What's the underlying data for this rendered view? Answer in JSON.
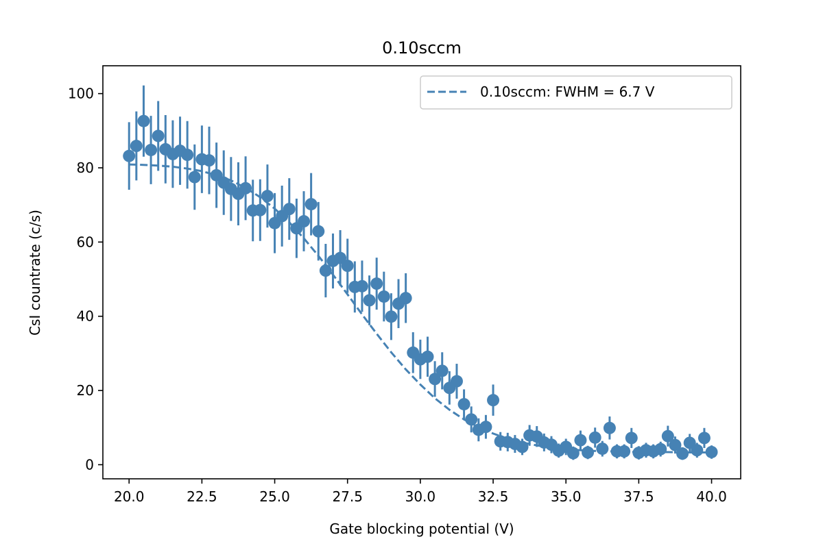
{
  "chart_data": {
    "type": "scatter",
    "title": "0.10sccm",
    "xlabel": "Gate blocking potential (V)",
    "ylabel": "CsI countrate (c/s)",
    "xlim": [
      19.1,
      41.0
    ],
    "ylim": [
      -3.8,
      107.5
    ],
    "xticks": [
      20.0,
      22.5,
      25.0,
      27.5,
      30.0,
      32.5,
      35.0,
      37.5,
      40.0
    ],
    "xtick_labels": [
      "20.0",
      "22.5",
      "25.0",
      "27.5",
      "30.0",
      "32.5",
      "35.0",
      "37.5",
      "40.0"
    ],
    "yticks": [
      0,
      20,
      40,
      60,
      80,
      100
    ],
    "ytick_labels": [
      "0",
      "20",
      "40",
      "60",
      "80",
      "100"
    ],
    "grid": false,
    "legend": {
      "placement": "top-right",
      "entries": [
        "0.10sccm: FWHM = 6.7 V"
      ]
    },
    "color": "#4682b4",
    "series": [
      {
        "name": "data",
        "style": "errorbar-points",
        "x": [
          20.0,
          20.25,
          20.5,
          20.75,
          21.0,
          21.25,
          21.5,
          21.75,
          22.0,
          22.25,
          22.5,
          22.75,
          23.0,
          23.25,
          23.5,
          23.75,
          24.0,
          24.25,
          24.5,
          24.75,
          25.0,
          25.25,
          25.5,
          25.75,
          26.0,
          26.25,
          26.5,
          26.75,
          27.0,
          27.25,
          27.5,
          27.75,
          28.0,
          28.25,
          28.5,
          28.75,
          29.0,
          29.25,
          29.5,
          29.75,
          30.0,
          30.25,
          30.5,
          30.75,
          31.0,
          31.25,
          31.5,
          31.75,
          32.0,
          32.25,
          32.5,
          32.75,
          33.0,
          33.25,
          33.5,
          33.75,
          34.0,
          34.25,
          34.5,
          34.75,
          35.0,
          35.25,
          35.5,
          35.75,
          36.0,
          36.25,
          36.5,
          36.75,
          37.0,
          37.25,
          37.5,
          37.75,
          38.0,
          38.25,
          38.5,
          38.75,
          39.0,
          39.25,
          39.5,
          39.75,
          40.0
        ],
        "y": [
          83.2,
          85.9,
          92.6,
          84.8,
          88.6,
          85.0,
          83.7,
          84.6,
          83.5,
          77.5,
          82.3,
          82.0,
          78.0,
          76.0,
          74.3,
          73.0,
          74.5,
          68.5,
          68.6,
          72.4,
          65.1,
          67.0,
          68.9,
          63.7,
          65.6,
          70.2,
          62.9,
          52.3,
          54.9,
          55.7,
          53.6,
          47.9,
          48.1,
          44.3,
          48.8,
          45.3,
          39.9,
          43.4,
          44.9,
          30.2,
          28.4,
          29.1,
          23.1,
          25.3,
          20.7,
          22.5,
          16.3,
          12.2,
          9.4,
          10.2,
          17.4,
          6.3,
          6.1,
          5.6,
          4.8,
          7.9,
          7.6,
          6.0,
          5.4,
          3.8,
          4.8,
          3.1,
          6.6,
          3.3,
          7.3,
          4.3,
          9.9,
          3.6,
          3.6,
          7.2,
          3.2,
          3.9,
          3.6,
          4.2,
          7.7,
          5.3,
          3.0,
          5.9,
          3.9,
          7.2,
          3.4
        ],
        "yerr": [
          9.1,
          9.3,
          9.6,
          9.2,
          9.4,
          9.2,
          9.1,
          9.2,
          9.1,
          8.8,
          9.1,
          9.1,
          8.8,
          8.7,
          8.6,
          8.5,
          8.6,
          8.3,
          8.3,
          8.5,
          8.1,
          8.2,
          8.3,
          8.0,
          8.1,
          8.4,
          7.9,
          7.2,
          7.4,
          7.5,
          7.3,
          6.9,
          6.9,
          6.7,
          7.0,
          6.7,
          6.3,
          6.6,
          6.7,
          5.5,
          5.3,
          5.4,
          4.8,
          5.0,
          4.5,
          4.7,
          4.0,
          3.5,
          3.1,
          3.2,
          4.2,
          2.5,
          2.5,
          2.4,
          2.2,
          2.8,
          2.8,
          2.4,
          2.3,
          1.9,
          2.2,
          1.8,
          2.6,
          1.8,
          2.7,
          2.1,
          3.1,
          1.9,
          1.9,
          2.7,
          1.8,
          2.0,
          1.9,
          2.0,
          2.8,
          2.3,
          1.7,
          2.4,
          2.0,
          2.7,
          1.8
        ]
      },
      {
        "name": "0.10sccm: FWHM = 6.7 V",
        "style": "dashed-line",
        "x": [
          20.0,
          20.5,
          21.0,
          21.5,
          22.0,
          22.5,
          23.0,
          23.5,
          24.0,
          24.5,
          25.0,
          25.5,
          26.0,
          26.5,
          27.0,
          27.5,
          28.0,
          28.5,
          29.0,
          29.5,
          30.0,
          30.5,
          31.0,
          31.5,
          32.0,
          32.5,
          33.0,
          33.5,
          34.0,
          34.5,
          35.0,
          35.5,
          36.0,
          36.5,
          37.0,
          37.5,
          38.0,
          38.5,
          39.0,
          39.5,
          40.0
        ],
        "y": [
          80.9,
          80.8,
          80.6,
          80.3,
          79.8,
          79.1,
          78.0,
          76.6,
          74.6,
          72.1,
          69.0,
          65.3,
          61.0,
          56.3,
          51.2,
          45.9,
          40.5,
          35.3,
          30.3,
          25.7,
          21.6,
          17.9,
          14.8,
          12.2,
          10.1,
          8.4,
          7.0,
          6.0,
          5.2,
          4.6,
          4.2,
          3.9,
          3.7,
          3.6,
          3.5,
          3.4,
          3.4,
          3.4,
          3.3,
          3.3,
          3.3
        ]
      }
    ]
  }
}
